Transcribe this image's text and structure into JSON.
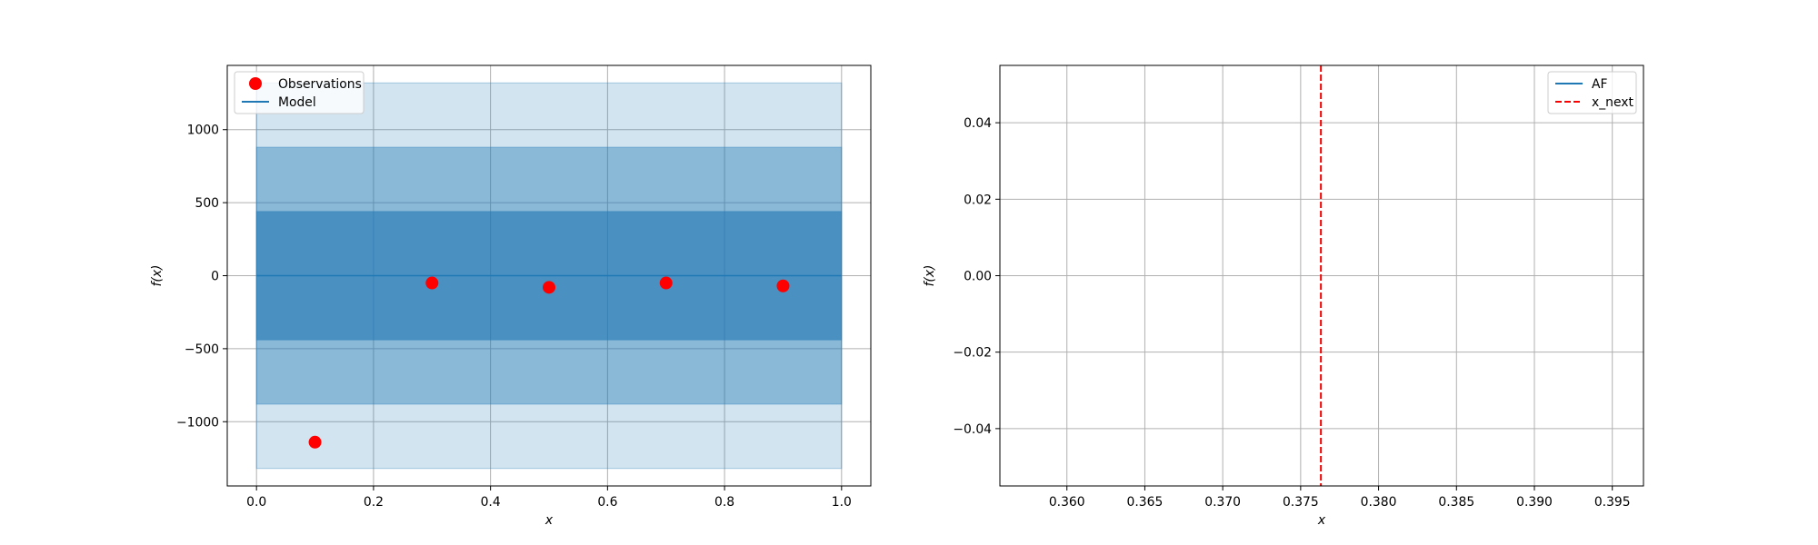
{
  "chart_data": [
    {
      "type": "scatter",
      "xlabel": "x",
      "ylabel": "f(x)",
      "xlim": [
        -0.05,
        1.05
      ],
      "ylim": [
        -1440,
        1440
      ],
      "xticks": [
        0.0,
        0.2,
        0.4,
        0.6,
        0.8,
        1.0
      ],
      "xtick_labels": [
        "0.0",
        "0.2",
        "0.4",
        "0.6",
        "0.8",
        "1.0"
      ],
      "yticks": [
        -1000,
        -500,
        0,
        500,
        1000
      ],
      "ytick_labels": [
        "−1000",
        "−500",
        "0",
        "500",
        "1000"
      ],
      "grid": true,
      "legend_position": "upper left",
      "legend": [
        {
          "label": "Observations",
          "kind": "marker",
          "color": "#ff0000"
        },
        {
          "label": "Model",
          "kind": "line",
          "color": "#1f77b4"
        }
      ],
      "series": [
        {
          "name": "Observations",
          "kind": "points",
          "color": "#ff0000",
          "x": [
            0.1,
            0.3,
            0.5,
            0.7,
            0.9
          ],
          "y": [
            -1140,
            -50,
            -80,
            -50,
            -70
          ]
        },
        {
          "name": "Model",
          "kind": "line",
          "color": "#1f77b4",
          "x": [
            0.0,
            1.0
          ],
          "y": [
            0,
            0
          ]
        }
      ],
      "bands": [
        {
          "lower": -1320,
          "upper": 1320,
          "x": [
            0.0,
            1.0
          ],
          "color": "#1f77b4",
          "opacity": 0.2
        },
        {
          "lower": -880,
          "upper": 880,
          "x": [
            0.0,
            1.0
          ],
          "color": "#1f77b4",
          "opacity": 0.4
        },
        {
          "lower": -440,
          "upper": 440,
          "x": [
            0.0,
            1.0
          ],
          "color": "#1f77b4",
          "opacity": 0.6
        }
      ]
    },
    {
      "type": "line",
      "xlabel": "x",
      "ylabel": "f(x)",
      "xlim": [
        0.3557,
        0.397
      ],
      "ylim": [
        -0.055,
        0.055
      ],
      "xticks": [
        0.36,
        0.365,
        0.37,
        0.375,
        0.38,
        0.385,
        0.39,
        0.395
      ],
      "xtick_labels": [
        "0.360",
        "0.365",
        "0.370",
        "0.375",
        "0.380",
        "0.385",
        "0.390",
        "0.395"
      ],
      "yticks": [
        -0.04,
        -0.02,
        0.0,
        0.02,
        0.04
      ],
      "ytick_labels": [
        "−0.04",
        "−0.02",
        "0.00",
        "0.02",
        "0.04"
      ],
      "grid": true,
      "legend_position": "upper right",
      "legend": [
        {
          "label": "AF",
          "kind": "line",
          "color": "#1f77b4"
        },
        {
          "label": "x_next",
          "kind": "dashed",
          "color": "#ff0000"
        }
      ],
      "vlines": [
        {
          "name": "x_next",
          "x": 0.3763,
          "color": "#ff0000",
          "dashed": true
        }
      ]
    }
  ]
}
